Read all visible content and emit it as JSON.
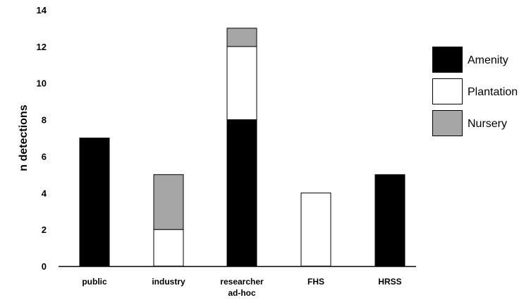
{
  "chart_data": {
    "type": "bar",
    "stacked": true,
    "title": "",
    "xlabel": "",
    "ylabel": "n detections",
    "ylim": [
      0,
      14
    ],
    "yticks": [
      0,
      2,
      4,
      6,
      8,
      10,
      12,
      14
    ],
    "grid": false,
    "legend_position": "right",
    "categories": [
      [
        "public"
      ],
      [
        "industry"
      ],
      [
        "researcher",
        "ad-hoc"
      ],
      [
        "FHS"
      ],
      [
        "HRSS"
      ]
    ],
    "series": [
      {
        "name": "Amenity",
        "color": "#000000",
        "values": [
          7,
          0,
          8,
          0,
          5
        ]
      },
      {
        "name": "Plantation",
        "color": "#ffffff",
        "values": [
          0,
          2,
          4,
          4,
          0
        ]
      },
      {
        "name": "Nursery",
        "color": "#a6a6a6",
        "values": [
          0,
          3,
          1,
          0,
          0
        ]
      }
    ]
  }
}
